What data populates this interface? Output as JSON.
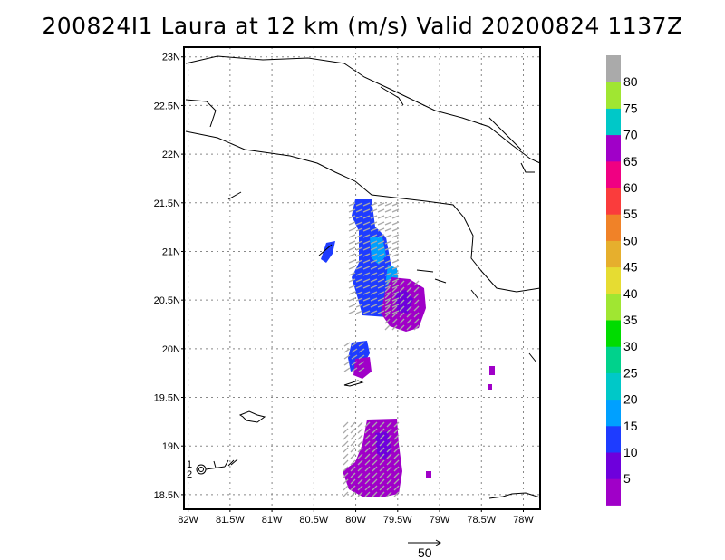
{
  "title": "200824I1 Laura at 12 km (m/s) Valid 20200824 1137Z",
  "map": {
    "lat_labels": [
      "23N",
      "22.5N",
      "22N",
      "21.5N",
      "21N",
      "20.5N",
      "20N",
      "19.5N",
      "19N",
      "18.5N"
    ],
    "lat_values": [
      23,
      22.5,
      22,
      21.5,
      21,
      20.5,
      20,
      19.5,
      19,
      18.5
    ],
    "lon_labels": [
      "82W",
      "81.5W",
      "81W",
      "80.5W",
      "80W",
      "79.5W",
      "79W",
      "78.5W",
      "78W"
    ],
    "lon_values": [
      -82,
      -81.5,
      -81,
      -80.5,
      -80,
      -79.5,
      -79,
      -78.5,
      -78
    ],
    "extent": {
      "lon_min": -82.05,
      "lon_max": -77.8,
      "lat_min": 18.35,
      "lat_max": 23.1
    },
    "grid": true,
    "storm_marker_labels": [
      "1",
      "2"
    ],
    "storm_center": {
      "lon": -81.93,
      "lat": 18.78
    }
  },
  "colorbar": {
    "labels": [
      "5",
      "10",
      "15",
      "20",
      "25",
      "30",
      "35",
      "40",
      "45",
      "50",
      "55",
      "60",
      "65",
      "70",
      "75",
      "80"
    ],
    "colors": [
      "#a000c8",
      "#6e00dc",
      "#1e3cff",
      "#00a0ff",
      "#00c8c8",
      "#00d28c",
      "#00dc00",
      "#a0e632",
      "#e6dc32",
      "#e6af2d",
      "#f08228",
      "#fa3c3c",
      "#f00082",
      "#a000c8",
      "#00c8c8",
      "#a0e632",
      "#aaaaaa"
    ]
  },
  "vector_scale": {
    "label": "50"
  },
  "colors": {
    "low": "#a000c8",
    "mid": "#1e3cff",
    "high": "#00a0ff",
    "vector": "#aaaaaa"
  }
}
